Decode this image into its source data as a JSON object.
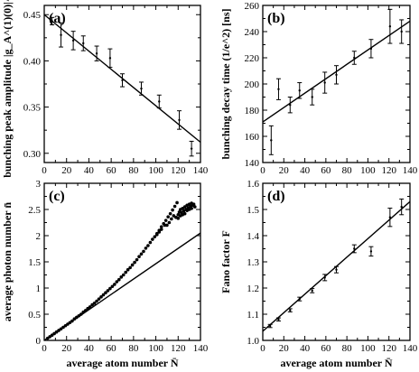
{
  "chart_data": [
    {
      "id": "a",
      "panel_label": "(a)",
      "type": "scatter",
      "ylabel": "bunching peak amplitude |g_A^(1)(0)|^2",
      "xlim": [
        0,
        140
      ],
      "ylim": [
        0.29,
        0.46
      ],
      "xticks": [
        0,
        20,
        40,
        60,
        80,
        100,
        120,
        140
      ],
      "yticks": [
        0.3,
        0.35,
        0.4,
        0.45
      ],
      "ytick_labels": [
        "0.30",
        "0.35",
        "0.40",
        "0.45"
      ],
      "show_xtick_labels": true,
      "points": [
        {
          "x": 7,
          "y": 0.443,
          "e": 0.004
        },
        {
          "x": 15,
          "y": 0.428,
          "e": 0.013
        },
        {
          "x": 26,
          "y": 0.422,
          "e": 0.01
        },
        {
          "x": 35,
          "y": 0.419,
          "e": 0.008
        },
        {
          "x": 47,
          "y": 0.408,
          "e": 0.008
        },
        {
          "x": 59,
          "y": 0.403,
          "e": 0.01
        },
        {
          "x": 70,
          "y": 0.379,
          "e": 0.007
        },
        {
          "x": 87,
          "y": 0.37,
          "e": 0.007
        },
        {
          "x": 103,
          "y": 0.356,
          "e": 0.007
        },
        {
          "x": 121,
          "y": 0.336,
          "e": 0.01
        },
        {
          "x": 132,
          "y": 0.305,
          "e": 0.008
        }
      ],
      "fit": {
        "x": [
          0,
          140
        ],
        "y": [
          0.45,
          0.312
        ]
      }
    },
    {
      "id": "b",
      "panel_label": "(b)",
      "type": "scatter",
      "ylabel": "bunching decay time (1/e^2) [ns]",
      "xlim": [
        0,
        140
      ],
      "ylim": [
        140,
        260
      ],
      "xticks": [
        0,
        20,
        40,
        60,
        80,
        100,
        120,
        140
      ],
      "yticks": [
        140,
        160,
        180,
        200,
        220,
        240,
        260
      ],
      "ytick_labels": [
        "140",
        "160",
        "180",
        "200",
        "220",
        "240",
        "260"
      ],
      "show_xtick_labels": true,
      "points": [
        {
          "x": 8,
          "y": 157,
          "e": 11
        },
        {
          "x": 15,
          "y": 196,
          "e": 8
        },
        {
          "x": 26,
          "y": 184,
          "e": 6
        },
        {
          "x": 35,
          "y": 195,
          "e": 6
        },
        {
          "x": 47,
          "y": 190,
          "e": 6
        },
        {
          "x": 59,
          "y": 201,
          "e": 8
        },
        {
          "x": 70,
          "y": 207,
          "e": 7
        },
        {
          "x": 87,
          "y": 220,
          "e": 5
        },
        {
          "x": 103,
          "y": 227,
          "e": 7
        },
        {
          "x": 121,
          "y": 244,
          "e": 13
        },
        {
          "x": 132,
          "y": 240,
          "e": 9
        }
      ],
      "fit": {
        "x": [
          0,
          140
        ],
        "y": [
          171,
          248
        ]
      }
    },
    {
      "id": "c",
      "panel_label": "(c)",
      "type": "scatter",
      "xlabel": "average atom number N̄",
      "ylabel": "average photon number n̄",
      "xlim": [
        0,
        140
      ],
      "ylim": [
        0,
        3
      ],
      "xticks": [
        0,
        20,
        40,
        60,
        80,
        100,
        120,
        140
      ],
      "yticks": [
        0,
        0.5,
        1,
        1.5,
        2,
        2.5,
        3
      ],
      "ytick_labels": [
        "0",
        "0.5",
        "1",
        "1.5",
        "2",
        "2.5",
        "3"
      ],
      "show_xtick_labels": true,
      "points": [
        {
          "x": 3,
          "y": 0.04
        },
        {
          "x": 5,
          "y": 0.07
        },
        {
          "x": 7,
          "y": 0.1
        },
        {
          "x": 9,
          "y": 0.13
        },
        {
          "x": 11,
          "y": 0.16
        },
        {
          "x": 13,
          "y": 0.19
        },
        {
          "x": 15,
          "y": 0.22
        },
        {
          "x": 17,
          "y": 0.25
        },
        {
          "x": 19,
          "y": 0.28
        },
        {
          "x": 21,
          "y": 0.31
        },
        {
          "x": 23,
          "y": 0.34
        },
        {
          "x": 25,
          "y": 0.37
        },
        {
          "x": 27,
          "y": 0.41
        },
        {
          "x": 29,
          "y": 0.44
        },
        {
          "x": 31,
          "y": 0.47
        },
        {
          "x": 33,
          "y": 0.5
        },
        {
          "x": 35,
          "y": 0.54
        },
        {
          "x": 37,
          "y": 0.57
        },
        {
          "x": 39,
          "y": 0.61
        },
        {
          "x": 41,
          "y": 0.64
        },
        {
          "x": 43,
          "y": 0.68
        },
        {
          "x": 45,
          "y": 0.71
        },
        {
          "x": 47,
          "y": 0.75
        },
        {
          "x": 49,
          "y": 0.79
        },
        {
          "x": 51,
          "y": 0.83
        },
        {
          "x": 53,
          "y": 0.87
        },
        {
          "x": 55,
          "y": 0.91
        },
        {
          "x": 57,
          "y": 0.95
        },
        {
          "x": 59,
          "y": 0.99
        },
        {
          "x": 61,
          "y": 1.03
        },
        {
          "x": 63,
          "y": 1.07
        },
        {
          "x": 65,
          "y": 1.12
        },
        {
          "x": 67,
          "y": 1.16
        },
        {
          "x": 69,
          "y": 1.21
        },
        {
          "x": 71,
          "y": 1.25
        },
        {
          "x": 73,
          "y": 1.3
        },
        {
          "x": 75,
          "y": 1.35
        },
        {
          "x": 77,
          "y": 1.39
        },
        {
          "x": 79,
          "y": 1.44
        },
        {
          "x": 81,
          "y": 1.49
        },
        {
          "x": 83,
          "y": 1.54
        },
        {
          "x": 85,
          "y": 1.6
        },
        {
          "x": 87,
          "y": 1.65
        },
        {
          "x": 89,
          "y": 1.7
        },
        {
          "x": 91,
          "y": 1.76
        },
        {
          "x": 93,
          "y": 1.81
        },
        {
          "x": 95,
          "y": 1.87
        },
        {
          "x": 97,
          "y": 1.93
        },
        {
          "x": 99,
          "y": 1.98
        },
        {
          "x": 101,
          "y": 2.04
        },
        {
          "x": 103,
          "y": 2.1
        },
        {
          "x": 105,
          "y": 2.17
        },
        {
          "x": 107,
          "y": 2.23
        },
        {
          "x": 109,
          "y": 2.29
        },
        {
          "x": 111,
          "y": 2.36
        },
        {
          "x": 113,
          "y": 2.42
        },
        {
          "x": 115,
          "y": 2.49
        },
        {
          "x": 117,
          "y": 2.56
        },
        {
          "x": 119,
          "y": 2.63
        },
        {
          "x": 101,
          "y": 2.02
        },
        {
          "x": 103,
          "y": 2.07
        },
        {
          "x": 105,
          "y": 2.12
        },
        {
          "x": 108,
          "y": 2.2
        },
        {
          "x": 110,
          "y": 2.2
        },
        {
          "x": 112,
          "y": 2.25
        },
        {
          "x": 114,
          "y": 2.32
        },
        {
          "x": 116,
          "y": 2.38
        },
        {
          "x": 118,
          "y": 2.35
        },
        {
          "x": 120,
          "y": 2.4
        },
        {
          "x": 121,
          "y": 2.45
        },
        {
          "x": 122,
          "y": 2.5
        },
        {
          "x": 123,
          "y": 2.44
        },
        {
          "x": 124,
          "y": 2.52
        },
        {
          "x": 125,
          "y": 2.47
        },
        {
          "x": 126,
          "y": 2.55
        },
        {
          "x": 127,
          "y": 2.5
        },
        {
          "x": 128,
          "y": 2.58
        },
        {
          "x": 129,
          "y": 2.53
        },
        {
          "x": 130,
          "y": 2.6
        },
        {
          "x": 131,
          "y": 2.56
        },
        {
          "x": 132,
          "y": 2.62
        },
        {
          "x": 133,
          "y": 2.58
        },
        {
          "x": 134,
          "y": 2.6
        },
        {
          "x": 135,
          "y": 2.55
        },
        {
          "x": 128,
          "y": 2.48
        },
        {
          "x": 130,
          "y": 2.5
        },
        {
          "x": 132,
          "y": 2.52
        },
        {
          "x": 126,
          "y": 2.42
        },
        {
          "x": 124,
          "y": 2.4
        },
        {
          "x": 122,
          "y": 2.38
        },
        {
          "x": 120,
          "y": 2.33
        }
      ],
      "fit": {
        "x": [
          0,
          140
        ],
        "y": [
          0,
          2.05
        ]
      }
    },
    {
      "id": "d",
      "panel_label": "(d)",
      "type": "scatter",
      "xlabel": "average atom number N̄",
      "ylabel": "Fano factor F",
      "xlim": [
        0,
        140
      ],
      "ylim": [
        1,
        1.6
      ],
      "xticks": [
        0,
        20,
        40,
        60,
        80,
        100,
        120,
        140
      ],
      "yticks": [
        1.0,
        1.1,
        1.2,
        1.3,
        1.4,
        1.5,
        1.6
      ],
      "ytick_labels": [
        "1.0",
        "1.1",
        "1.2",
        "1.3",
        "1.4",
        "1.5",
        "1.6"
      ],
      "show_xtick_labels": true,
      "points": [
        {
          "x": 7,
          "y": 1.055,
          "e": 0.006
        },
        {
          "x": 15,
          "y": 1.08,
          "e": 0.006
        },
        {
          "x": 26,
          "y": 1.115,
          "e": 0.006
        },
        {
          "x": 35,
          "y": 1.158,
          "e": 0.007
        },
        {
          "x": 47,
          "y": 1.19,
          "e": 0.008
        },
        {
          "x": 59,
          "y": 1.24,
          "e": 0.012
        },
        {
          "x": 70,
          "y": 1.27,
          "e": 0.012
        },
        {
          "x": 87,
          "y": 1.35,
          "e": 0.015
        },
        {
          "x": 103,
          "y": 1.34,
          "e": 0.018
        },
        {
          "x": 121,
          "y": 1.47,
          "e": 0.035
        },
        {
          "x": 132,
          "y": 1.51,
          "e": 0.03
        }
      ],
      "fit": {
        "x": [
          0,
          140
        ],
        "y": [
          1.035,
          1.53
        ]
      }
    }
  ]
}
